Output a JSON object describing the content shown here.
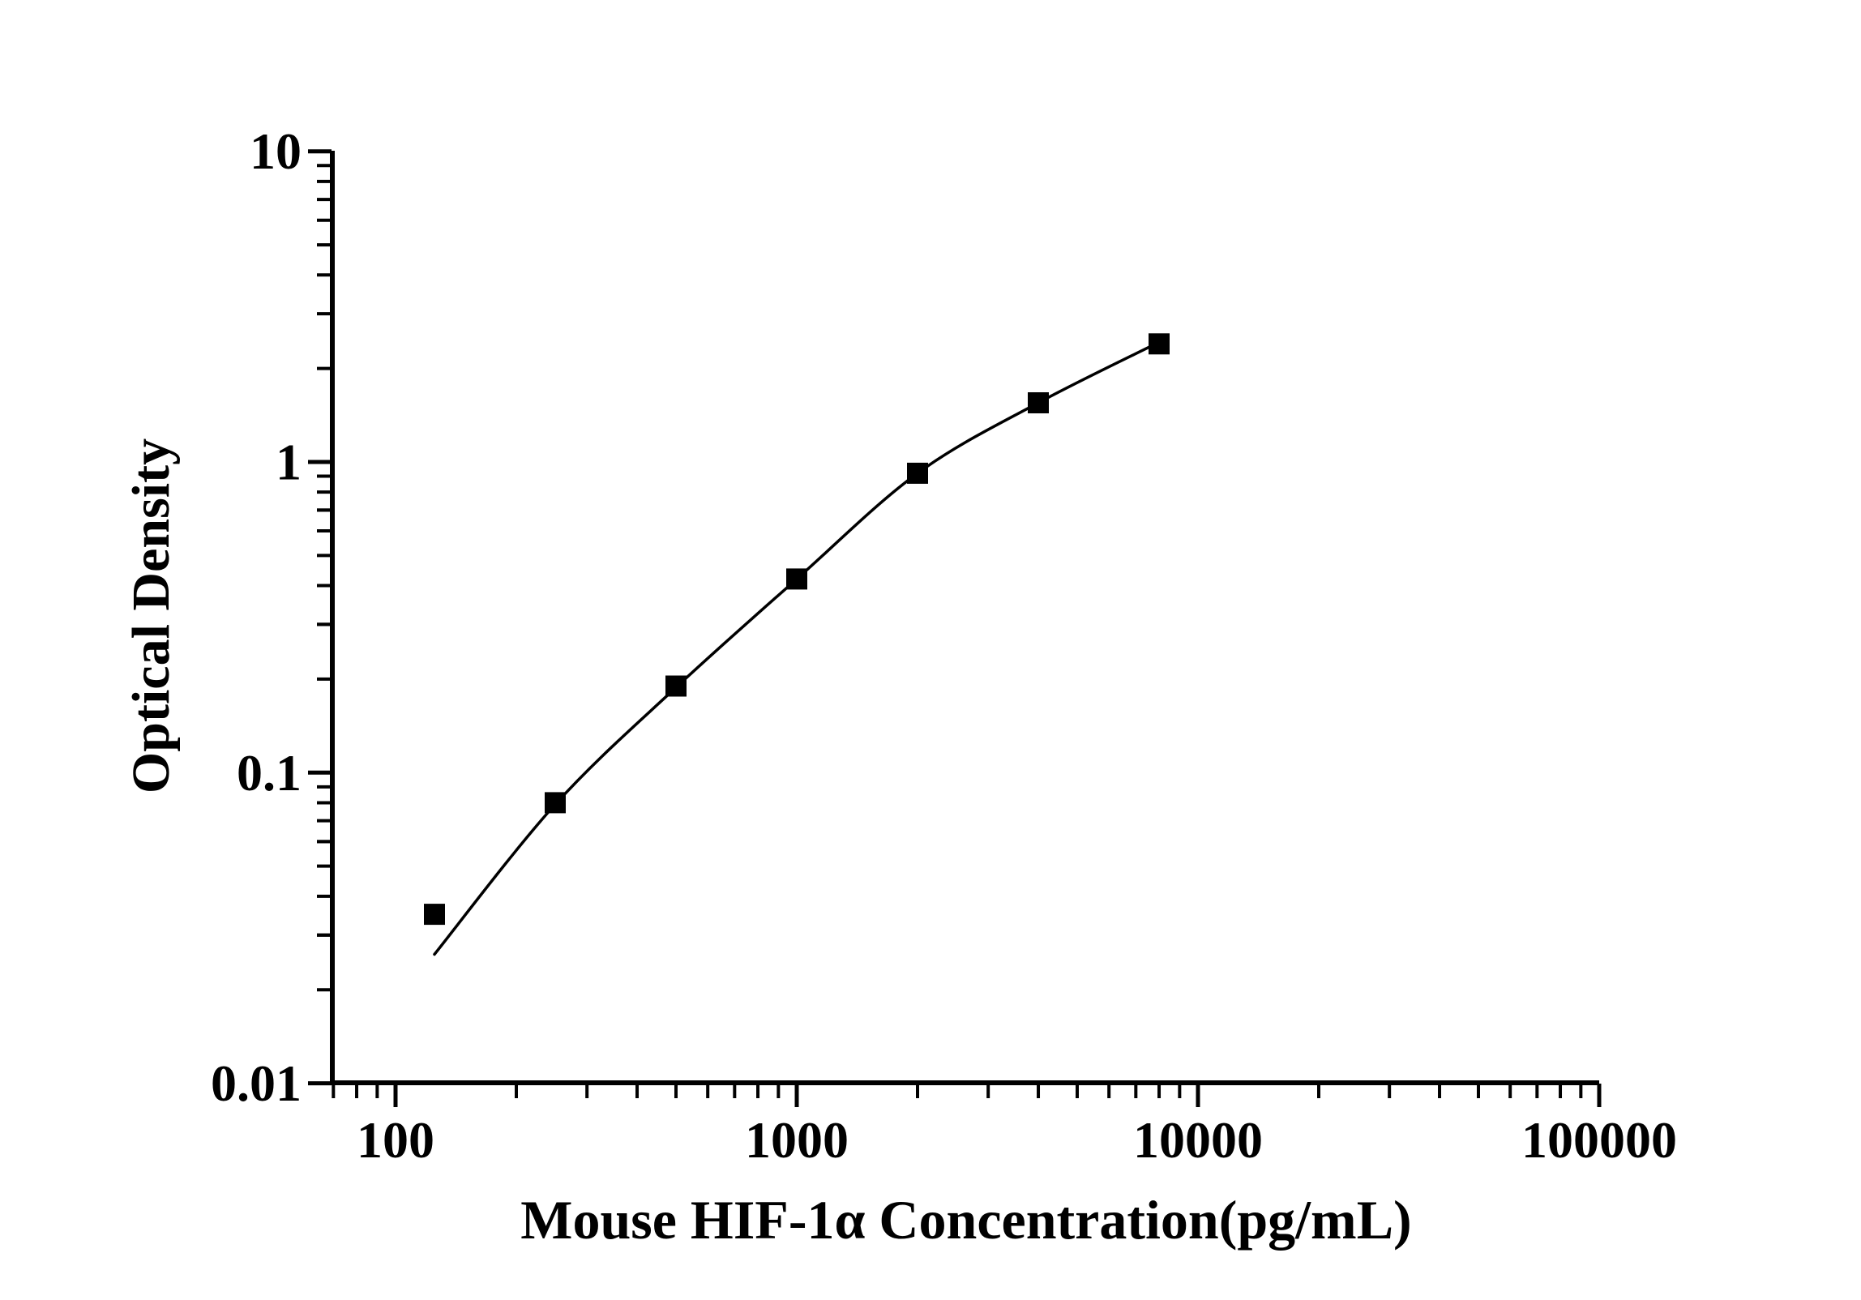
{
  "page": {
    "background": "#ffffff"
  },
  "chart_data": {
    "type": "scatter",
    "subtype": "elisa-standard-curve",
    "title": "",
    "xlabel": "Mouse HIF-1α Concentration(pg/mL)",
    "ylabel": "Optical Density",
    "x_scale": "log",
    "y_scale": "log",
    "xlim": [
      70,
      100000
    ],
    "ylim": [
      0.01,
      10
    ],
    "x_major_ticks": [
      100,
      1000,
      10000,
      100000
    ],
    "x_tick_labels": [
      "100",
      "1000",
      "10000",
      "100000"
    ],
    "y_major_ticks": [
      0.01,
      0.1,
      1,
      10
    ],
    "y_tick_labels": [
      "0.01",
      "0.1",
      "1",
      "10"
    ],
    "minor_ticks": "logarithmic 2-9 subdivisions on both axes, drawn outward",
    "grid": false,
    "legend": null,
    "series": [
      {
        "name": "standard-points",
        "marker": "filled-black-square",
        "x": [
          125,
          250,
          500,
          1000,
          2000,
          4000,
          8000
        ],
        "y": [
          0.035,
          0.08,
          0.19,
          0.42,
          0.92,
          1.55,
          2.4
        ]
      }
    ],
    "fit_curve": {
      "description": "smooth fitted curve through the standards, ending slightly below the lowest point",
      "x": [
        125,
        250,
        500,
        1000,
        2000,
        4000,
        8000
      ],
      "y": [
        0.026,
        0.079,
        0.188,
        0.42,
        0.92,
        1.55,
        2.43
      ]
    },
    "colors": {
      "ink": "#000000",
      "background": "#ffffff"
    }
  }
}
